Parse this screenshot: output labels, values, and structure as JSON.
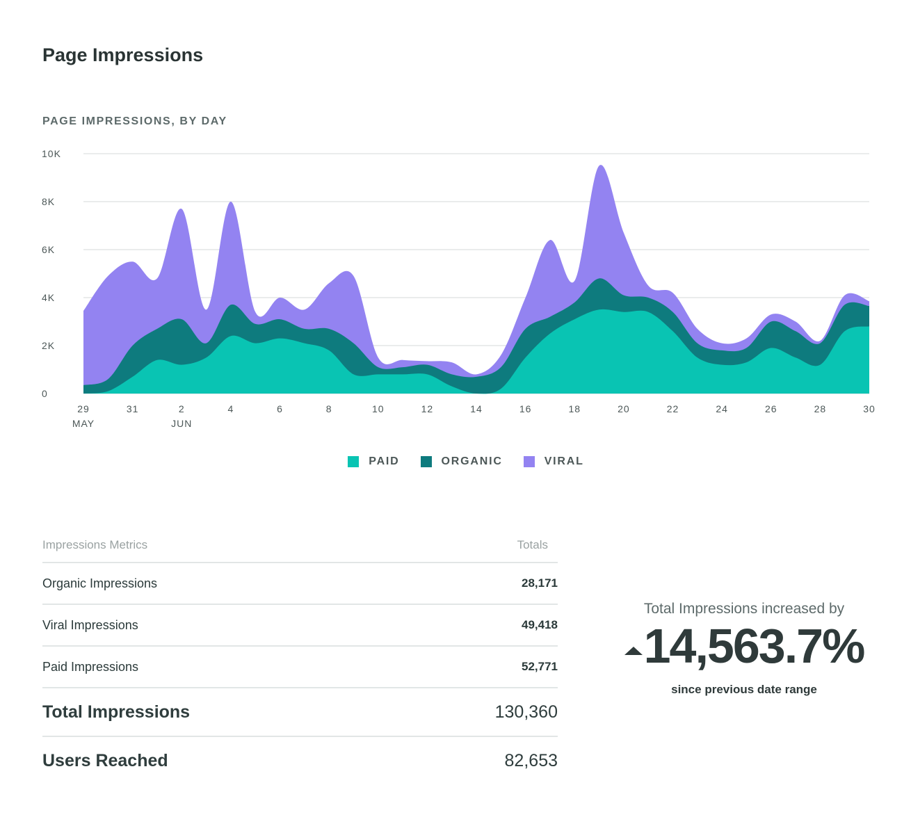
{
  "page_title": "Page Impressions",
  "chart_data": {
    "type": "area",
    "stacked": true,
    "title": "PAGE IMPRESSIONS, BY DAY",
    "ylim": [
      0,
      10000
    ],
    "yticks": [
      0,
      2000,
      4000,
      6000,
      8000,
      10000
    ],
    "ytick_labels": [
      "0",
      "2K",
      "4K",
      "6K",
      "8K",
      "10K"
    ],
    "x": [
      "May 29",
      "May 30",
      "May 31",
      "Jun 1",
      "Jun 2",
      "Jun 3",
      "Jun 4",
      "Jun 5",
      "Jun 6",
      "Jun 7",
      "Jun 8",
      "Jun 9",
      "Jun 10",
      "Jun 11",
      "Jun 12",
      "Jun 13",
      "Jun 14",
      "Jun 15",
      "Jun 16",
      "Jun 17",
      "Jun 18",
      "Jun 19",
      "Jun 20",
      "Jun 21",
      "Jun 22",
      "Jun 23",
      "Jun 24",
      "Jun 25",
      "Jun 26",
      "Jun 27",
      "Jun 28",
      "Jun 29",
      "Jun 30"
    ],
    "xtick_labels": [
      {
        "label": "29",
        "sub": "MAY"
      },
      {
        "label": "31",
        "sub": ""
      },
      {
        "label": "2",
        "sub": "JUN"
      },
      {
        "label": "4",
        "sub": ""
      },
      {
        "label": "6",
        "sub": ""
      },
      {
        "label": "8",
        "sub": ""
      },
      {
        "label": "10",
        "sub": ""
      },
      {
        "label": "12",
        "sub": ""
      },
      {
        "label": "14",
        "sub": ""
      },
      {
        "label": "16",
        "sub": ""
      },
      {
        "label": "18",
        "sub": ""
      },
      {
        "label": "20",
        "sub": ""
      },
      {
        "label": "22",
        "sub": ""
      },
      {
        "label": "24",
        "sub": ""
      },
      {
        "label": "26",
        "sub": ""
      },
      {
        "label": "28",
        "sub": ""
      },
      {
        "label": "30",
        "sub": ""
      }
    ],
    "legend_position": "bottom",
    "grid": true,
    "series": [
      {
        "name": "PAID",
        "color": "#09c4b3",
        "values": [
          0,
          100,
          700,
          1400,
          1200,
          1500,
          2400,
          2100,
          2300,
          2100,
          1800,
          800,
          800,
          800,
          800,
          300,
          0,
          200,
          1500,
          2500,
          3100,
          3500,
          3400,
          3400,
          2600,
          1500,
          1200,
          1300,
          1900,
          1500,
          1200,
          2600,
          2800
        ]
      },
      {
        "name": "ORGANIC",
        "color": "#0e7b7e",
        "values": [
          350,
          500,
          1300,
          1300,
          1900,
          600,
          1300,
          800,
          800,
          600,
          900,
          1300,
          300,
          300,
          400,
          500,
          700,
          900,
          1200,
          700,
          700,
          1300,
          700,
          600,
          800,
          600,
          600,
          600,
          1100,
          1100,
          900,
          1100,
          850
        ]
      },
      {
        "name": "VIRAL",
        "color": "#9383f1",
        "values": [
          3100,
          4300,
          3500,
          2100,
          4600,
          1400,
          4300,
          500,
          900,
          800,
          1900,
          2800,
          400,
          300,
          150,
          500,
          100,
          500,
          1300,
          3200,
          900,
          4700,
          2600,
          500,
          800,
          600,
          300,
          400,
          300,
          400,
          100,
          400,
          200
        ]
      }
    ]
  },
  "metrics": {
    "header_label": "Impressions Metrics",
    "header_totals": "Totals",
    "rows": [
      {
        "label": "Organic Impressions",
        "value": "28,171"
      },
      {
        "label": "Viral Impressions",
        "value": "49,418"
      },
      {
        "label": "Paid Impressions",
        "value": "52,771"
      }
    ],
    "total": {
      "label": "Total Impressions",
      "value": "130,360"
    },
    "reached": {
      "label": "Users Reached",
      "value": "82,653"
    }
  },
  "summary": {
    "label": "Total Impressions increased by",
    "value": "14,563.7%",
    "sub": "since previous date range"
  }
}
